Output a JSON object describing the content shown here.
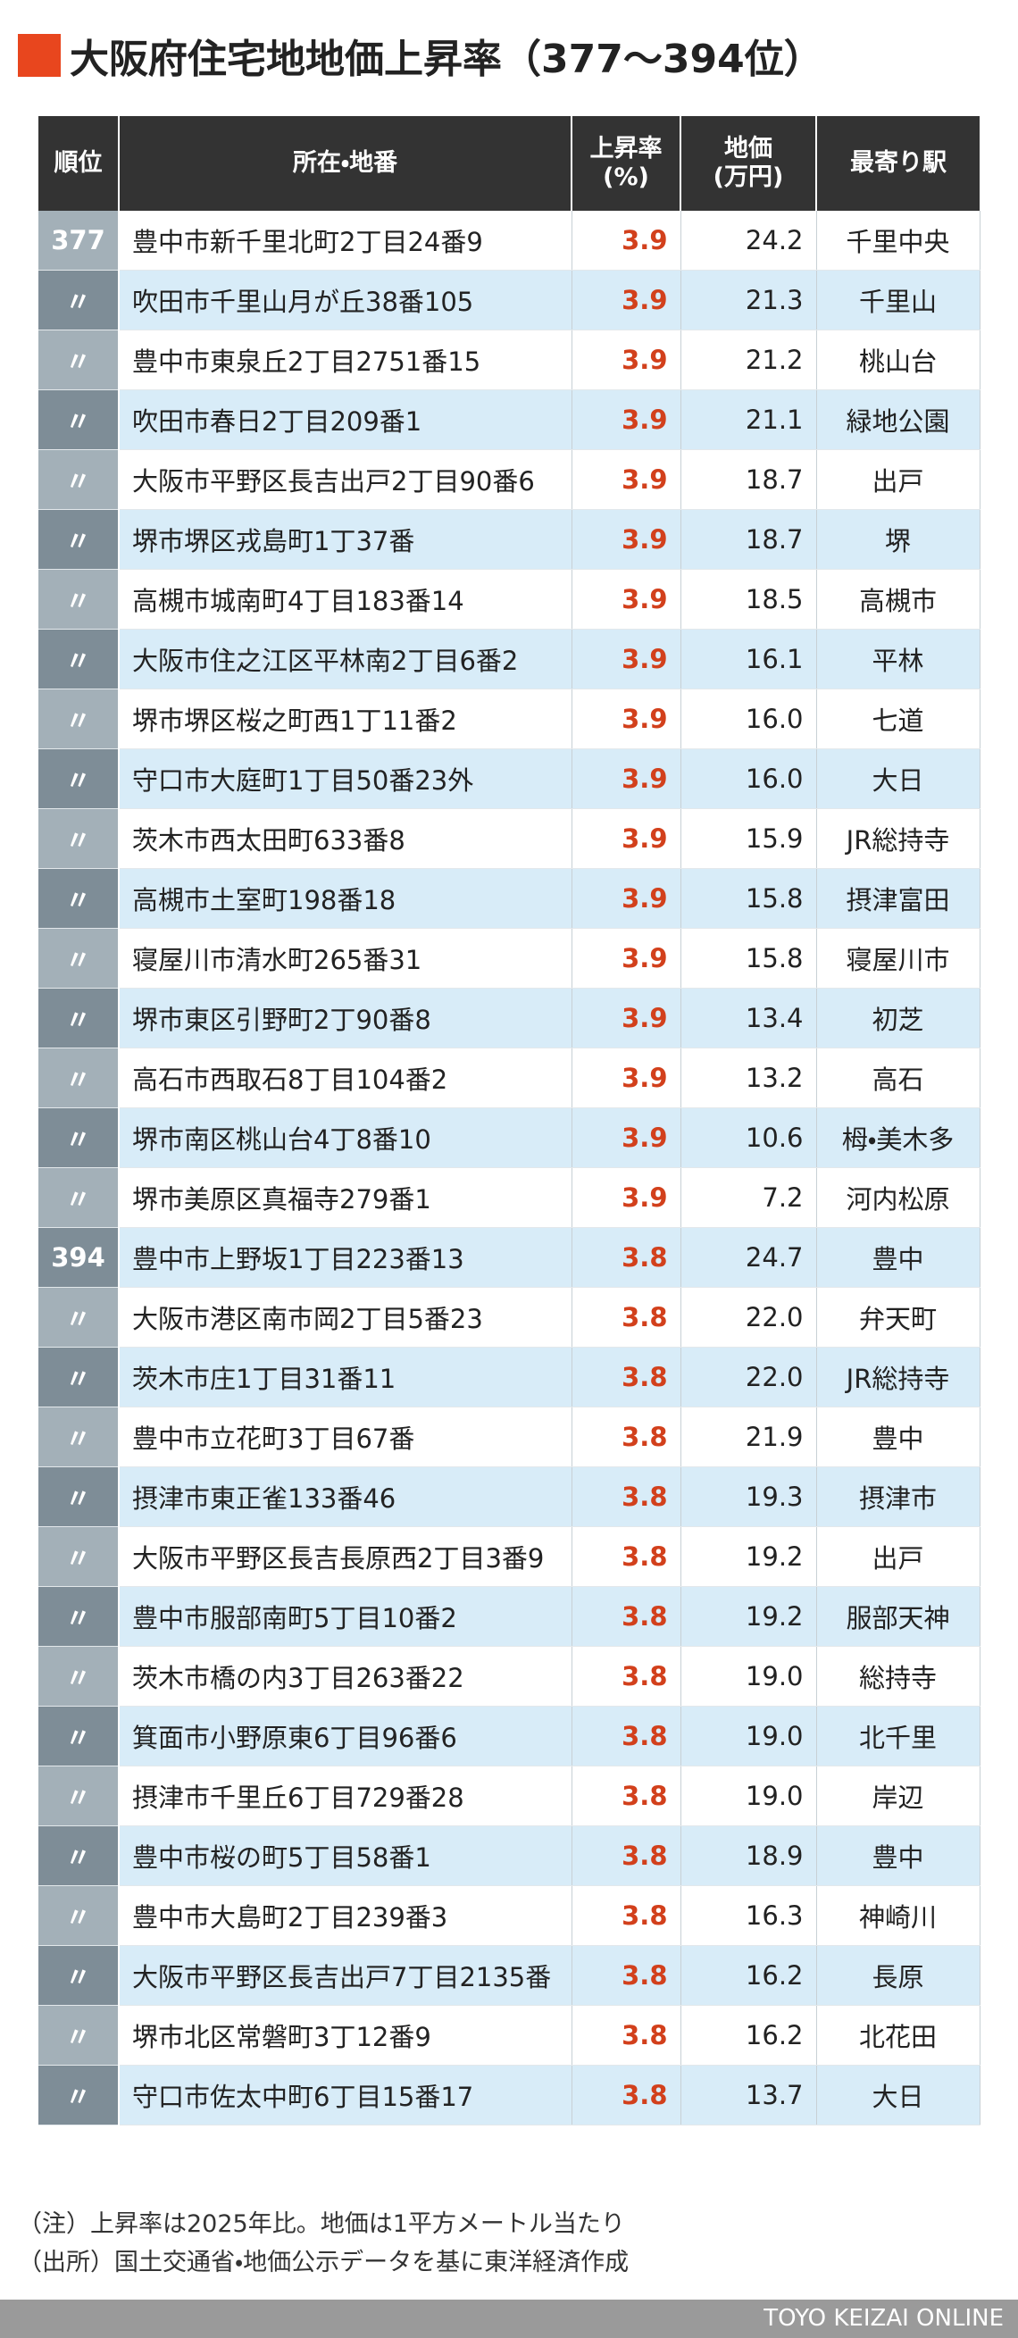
{
  "title": "大阪府住宅地地価上昇率（377〜394位）",
  "table": {
    "header": [
      "順位",
      "所在・地番",
      "上昇率\n(%)",
      "地価\n(万円)",
      "最寄り駅"
    ],
    "rows": [
      [
        "377",
        "豊中市新千里北町2丁目24番9",
        "3.9",
        "24.2",
        "千里中央"
      ],
      [
        "〃",
        "吹田市千里山月が丘38番105",
        "3.9",
        "21.3",
        "千里山"
      ],
      [
        "〃",
        "豊中市東泉丘2丁目2751番15",
        "3.9",
        "21.2",
        "桃山台"
      ],
      [
        "〃",
        "吹田市春日2丁目209番1",
        "3.9",
        "21.1",
        "緑地公園"
      ],
      [
        "〃",
        "大阪市平野区長吉出戸2丁目90番6",
        "3.9",
        "18.7",
        "出戸"
      ],
      [
        "〃",
        "堺市堺区戎島町1丁37番",
        "3.9",
        "18.7",
        "堺"
      ],
      [
        "〃",
        "高槻市城南町4丁目183番14",
        "3.9",
        "18.5",
        "高槻市"
      ],
      [
        "〃",
        "大阪市住之江区平林南2丁目6番2",
        "3.9",
        "16.1",
        "平林"
      ],
      [
        "〃",
        "堺市堺区桜之町西1丁11番2",
        "3.9",
        "16.0",
        "七道"
      ],
      [
        "〃",
        "守口市大庭町1丁目50番23外",
        "3.9",
        "16.0",
        "大日"
      ],
      [
        "〃",
        "茨木市西太田町633番8",
        "3.9",
        "15.9",
        "JR総持寺"
      ],
      [
        "〃",
        "高槻市土室町198番18",
        "3.9",
        "15.8",
        "摂津富田"
      ],
      [
        "〃",
        "寝屋川市清水町265番31",
        "3.9",
        "15.8",
        "寝屋川市"
      ],
      [
        "〃",
        "堺市東区引野町2丁90番8",
        "3.9",
        "13.4",
        "初芝"
      ],
      [
        "〃",
        "高石市西取石8丁目104番2",
        "3.9",
        "13.2",
        "高石"
      ],
      [
        "〃",
        "堺市南区桃山台4丁8番10",
        "3.9",
        "10.6",
        "栂・美木多"
      ],
      [
        "〃",
        "堺市美原区真福寺279番1",
        "3.9",
        "7.2",
        "河内松原"
      ],
      [
        "394",
        "豊中市上野坂1丁目223番13",
        "3.8",
        "24.7",
        "豊中"
      ],
      [
        "〃",
        "大阪市港区南市岡2丁目5番23",
        "3.8",
        "22.0",
        "弁天町"
      ],
      [
        "〃",
        "茨木市庄1丁目31番11",
        "3.8",
        "22.0",
        "JR総持寺"
      ],
      [
        "〃",
        "豊中市立花町3丁目67番",
        "3.8",
        "21.9",
        "豊中"
      ],
      [
        "〃",
        "摂津市東正雀133番46",
        "3.8",
        "19.3",
        "摂津市"
      ],
      [
        "〃",
        "大阪市平野区長吉長原西2丁目3番9",
        "3.8",
        "19.2",
        "出戸"
      ],
      [
        "〃",
        "豊中市服部南町5丁目10番2",
        "3.8",
        "19.2",
        "服部天神"
      ],
      [
        "〃",
        "茨木市橋の内3丁目263番22",
        "3.8",
        "19.0",
        "総持寺"
      ],
      [
        "〃",
        "箕面市小野原東6丁目96番6",
        "3.8",
        "19.0",
        "北千里"
      ],
      [
        "〃",
        "摂津市千里丘6丁目729番28",
        "3.8",
        "19.0",
        "岸辺"
      ],
      [
        "〃",
        "豊中市桜の町5丁目58番1",
        "3.8",
        "18.9",
        "豊中"
      ],
      [
        "〃",
        "豊中市大島町2丁目239番3",
        "3.8",
        "16.3",
        "神崎川"
      ],
      [
        "〃",
        "大阪市平野区長吉出戸7丁目2135番",
        "3.8",
        "16.2",
        "長原"
      ],
      [
        "〃",
        "堺市北区常磐町3丁12番9",
        "3.8",
        "16.2",
        "北花田"
      ],
      [
        "〃",
        "守口市佐太中町6丁目15番17",
        "3.8",
        "13.7",
        "大日"
      ]
    ]
  },
  "notes": [
    "（注）上昇率は2025年比。地価は1平方メートル当たり",
    "（出所）国土交通省・地価公示データを基に東洋経済作成"
  ],
  "footer": "TOYO KEIZAI ONLINE"
}
